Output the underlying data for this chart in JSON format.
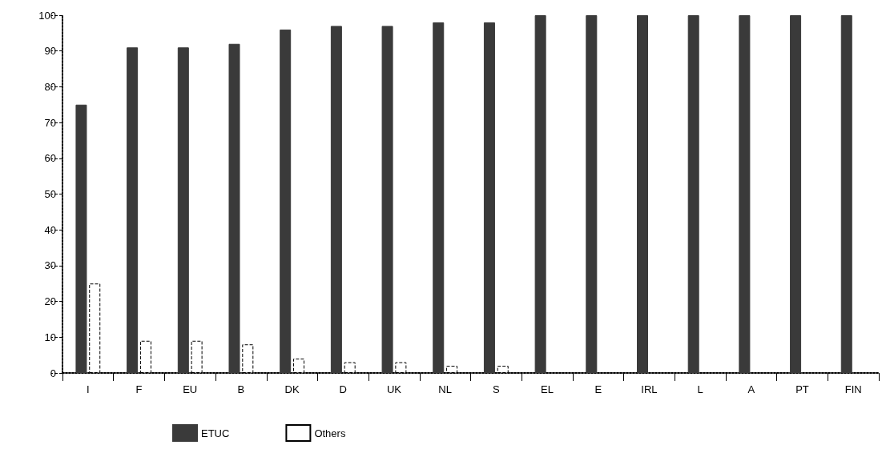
{
  "chart_data": {
    "type": "bar",
    "categories": [
      "I",
      "F",
      "EU",
      "B",
      "DK",
      "D",
      "UK",
      "NL",
      "S",
      "EL",
      "E",
      "IRL",
      "L",
      "A",
      "PT",
      "FIN"
    ],
    "series": [
      {
        "name": "ETUC",
        "color": "#3a3a3a",
        "values": [
          75,
          91,
          91,
          92,
          96,
          97,
          97,
          98,
          98,
          100,
          100,
          100,
          100,
          100,
          100,
          100
        ]
      },
      {
        "name": "Others",
        "color": "#ffffff",
        "values": [
          25,
          9,
          9,
          8,
          4,
          3,
          3,
          2,
          2,
          null,
          null,
          null,
          null,
          null,
          null,
          null
        ]
      }
    ],
    "ylim": [
      0,
      100
    ],
    "yticks": [
      0,
      10,
      20,
      30,
      40,
      50,
      60,
      70,
      80,
      90,
      100
    ],
    "grid": false,
    "legend": "bottom"
  }
}
